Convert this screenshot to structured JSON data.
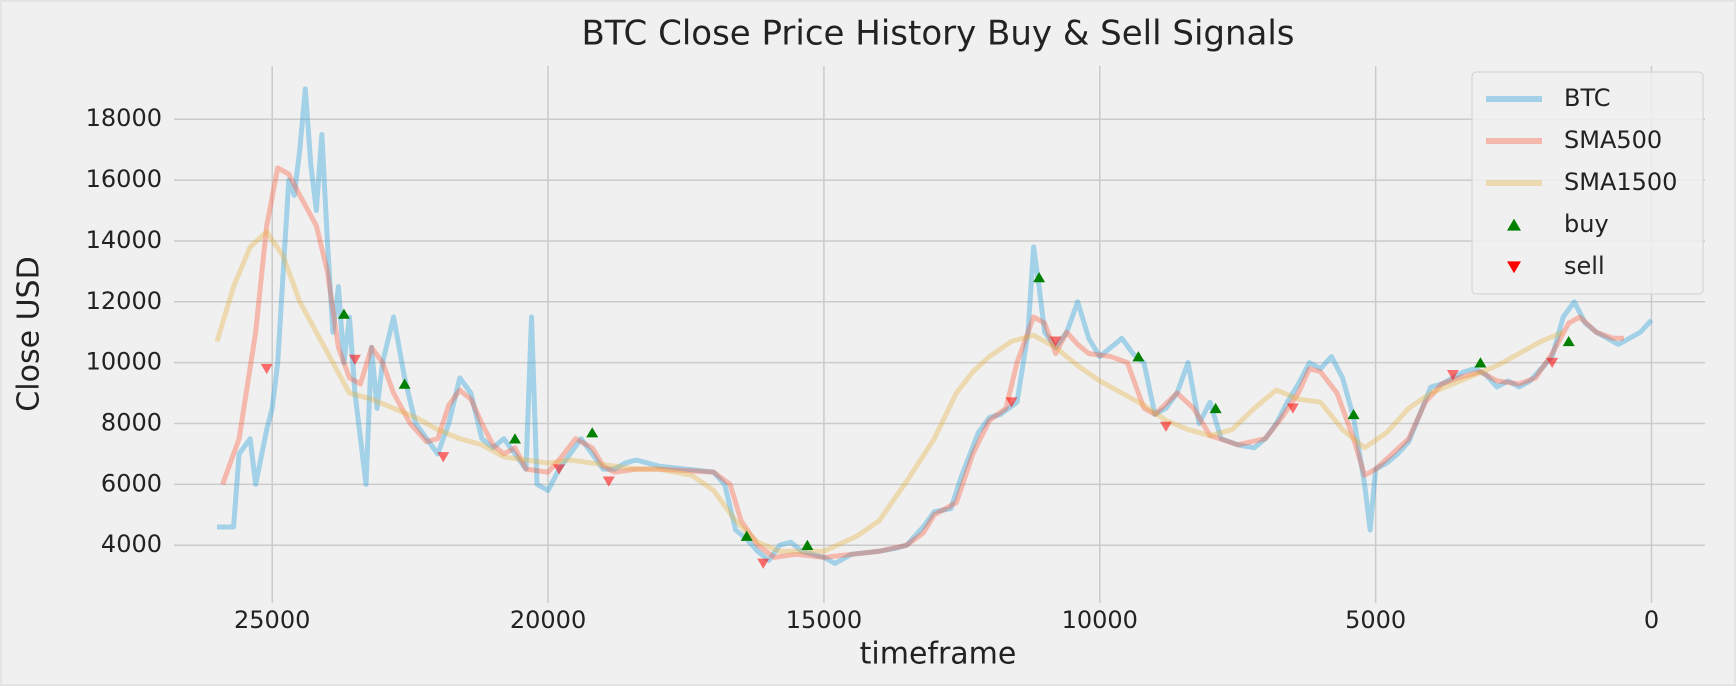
{
  "chart_data": {
    "type": "line",
    "title": "BTC Close Price History Buy & Sell Signals",
    "xlabel": "timeframe",
    "ylabel": "Close USD",
    "xlim": [
      26780,
      -970
    ],
    "xticks": [
      25000,
      20000,
      15000,
      10000,
      5000,
      0
    ],
    "ylim": [
      2100,
      19750
    ],
    "yticks": [
      4000,
      6000,
      8000,
      10000,
      12000,
      14000,
      16000,
      18000
    ],
    "grid": true,
    "legend": "upper right",
    "series": [
      {
        "name": "BTC",
        "color": "#30a2da",
        "opacity": 0.4,
        "x": [
          26000,
          25700,
          25600,
          25400,
          25300,
          25100,
          25000,
          24900,
          24800,
          24700,
          24600,
          24500,
          24400,
          24300,
          24200,
          24100,
          24000,
          23900,
          23800,
          23700,
          23600,
          23500,
          23300,
          23200,
          23100,
          23000,
          22800,
          22600,
          22400,
          22200,
          22000,
          21800,
          21600,
          21400,
          21200,
          21000,
          20800,
          20600,
          20400,
          20300,
          20200,
          20000,
          19800,
          19600,
          19400,
          19200,
          19000,
          18800,
          18600,
          18400,
          18000,
          17500,
          17000,
          16800,
          16600,
          16400,
          16200,
          16000,
          15800,
          15600,
          15400,
          15000,
          14800,
          14500,
          14000,
          13700,
          13500,
          13200,
          13000,
          12700,
          12500,
          12200,
          12000,
          11800,
          11500,
          11300,
          11200,
          11100,
          11000,
          10800,
          10600,
          10400,
          10200,
          10000,
          9800,
          9600,
          9400,
          9200,
          9000,
          8800,
          8600,
          8400,
          8200,
          8000,
          7800,
          7500,
          7200,
          7000,
          6800,
          6600,
          6400,
          6200,
          6000,
          5800,
          5600,
          5400,
          5200,
          5100,
          5000,
          4800,
          4600,
          4400,
          4200,
          4000,
          3800,
          3600,
          3400,
          3200,
          3000,
          2800,
          2600,
          2400,
          2200,
          2000,
          1800,
          1600,
          1400,
          1200,
          1000,
          800,
          600,
          400,
          200,
          0
        ],
        "values": [
          4600,
          4600,
          7000,
          7500,
          6000,
          7800,
          8500,
          10000,
          13000,
          16000,
          15500,
          17000,
          19000,
          16500,
          15000,
          17500,
          14000,
          11000,
          12500,
          10000,
          11500,
          9000,
          6000,
          10500,
          8500,
          10000,
          11500,
          9500,
          8000,
          7500,
          7000,
          8000,
          9500,
          9000,
          7500,
          7200,
          7500,
          7000,
          6500,
          11500,
          6000,
          5800,
          6500,
          7000,
          7500,
          7000,
          6500,
          6500,
          6700,
          6800,
          6600,
          6500,
          6400,
          6000,
          4500,
          4200,
          3800,
          3500,
          4000,
          4100,
          3800,
          3600,
          3400,
          3700,
          3800,
          3900,
          4000,
          4600,
          5100,
          5200,
          6300,
          7700,
          8200,
          8300,
          8700,
          11000,
          13800,
          12500,
          11000,
          10500,
          11000,
          12000,
          10800,
          10200,
          10500,
          10800,
          10300,
          10000,
          8300,
          8500,
          9000,
          10000,
          8000,
          8700,
          7500,
          7300,
          7200,
          7500,
          8000,
          8700,
          9300,
          10000,
          9800,
          10200,
          9500,
          8200,
          6000,
          4500,
          6500,
          6700,
          7000,
          7400,
          8300,
          9200,
          9300,
          9500,
          9700,
          9800,
          9600,
          9200,
          9400,
          9200,
          9400,
          9800,
          10200,
          11500,
          12000,
          11300,
          11000,
          10800,
          10600,
          10800,
          11000,
          11400
        ]
      },
      {
        "name": "SMA500",
        "color": "#fc4f30",
        "opacity": 0.35,
        "x": [
          25900,
          25600,
          25300,
          25100,
          24900,
          24700,
          24500,
          24200,
          24000,
          23800,
          23600,
          23400,
          23200,
          23000,
          22800,
          22500,
          22200,
          22000,
          21800,
          21600,
          21400,
          21200,
          21000,
          20800,
          20600,
          20400,
          20000,
          19800,
          19500,
          19200,
          19000,
          18800,
          18400,
          18000,
          17000,
          16700,
          16500,
          16200,
          15900,
          15500,
          15000,
          14500,
          14000,
          13500,
          13200,
          13000,
          12600,
          12300,
          12000,
          11700,
          11500,
          11200,
          11000,
          10800,
          10600,
          10400,
          10200,
          9800,
          9500,
          9200,
          9000,
          8600,
          8300,
          8000,
          7500,
          7000,
          6700,
          6400,
          6200,
          6000,
          5700,
          5400,
          5200,
          5000,
          4700,
          4400,
          4100,
          3800,
          3500,
          3100,
          2800,
          2400,
          2100,
          1800,
          1500,
          1300,
          1000,
          700,
          500
        ],
        "values": [
          6000,
          7500,
          11000,
          14500,
          16400,
          16200,
          15500,
          14500,
          13000,
          10500,
          9500,
          9300,
          10500,
          10000,
          9000,
          8000,
          7400,
          7500,
          8600,
          9100,
          8800,
          8000,
          7300,
          7000,
          7200,
          6500,
          6400,
          6800,
          7500,
          7200,
          6600,
          6400,
          6500,
          6500,
          6400,
          6000,
          4800,
          4000,
          3600,
          3700,
          3600,
          3700,
          3800,
          4000,
          4400,
          5000,
          5400,
          7000,
          8100,
          8500,
          10000,
          11500,
          11300,
          10300,
          11000,
          10600,
          10300,
          10200,
          10000,
          8500,
          8300,
          9000,
          8500,
          7600,
          7300,
          7500,
          8200,
          9000,
          9800,
          9700,
          9000,
          7500,
          6300,
          6500,
          7000,
          7500,
          8700,
          9300,
          9500,
          9700,
          9400,
          9300,
          9500,
          10300,
          11300,
          11500,
          11000,
          10800,
          10800
        ]
      },
      {
        "name": "SMA1500",
        "color": "#e5ae38",
        "opacity": 0.35,
        "x": [
          26000,
          25700,
          25400,
          25100,
          24800,
          24500,
          24200,
          23900,
          23600,
          23200,
          22800,
          22400,
          22000,
          21600,
          21200,
          20800,
          20400,
          20000,
          19600,
          19200,
          18800,
          18400,
          18000,
          17400,
          17000,
          16600,
          16200,
          15800,
          15400,
          15000,
          14400,
          14000,
          13500,
          13000,
          12600,
          12300,
          12000,
          11600,
          11200,
          10800,
          10400,
          10000,
          9600,
          9200,
          8800,
          8400,
          8000,
          7600,
          7200,
          6800,
          6400,
          6000,
          5600,
          5200,
          4800,
          4400,
          4000,
          3600,
          3200,
          2800,
          2400,
          2000,
          1600
        ],
        "values": [
          10700,
          12500,
          13800,
          14300,
          13500,
          12000,
          11000,
          10000,
          9000,
          8800,
          8500,
          8200,
          7800,
          7500,
          7300,
          6900,
          6800,
          6700,
          6800,
          6700,
          6600,
          6500,
          6500,
          6300,
          5800,
          4800,
          4100,
          3800,
          3800,
          3800,
          4300,
          4800,
          6100,
          7500,
          9000,
          9700,
          10200,
          10700,
          10900,
          10500,
          9900,
          9400,
          9000,
          8600,
          8100,
          7800,
          7600,
          7800,
          8500,
          9100,
          8800,
          8700,
          7800,
          7200,
          7700,
          8500,
          9000,
          9300,
          9600,
          9900,
          10300,
          10700,
          11000
        ]
      },
      {
        "name": "buy",
        "color": "#008000",
        "marker": "^",
        "x": [
          23700,
          22600,
          20600,
          19200,
          16400,
          15300,
          11100,
          9300,
          7900,
          5400,
          3100,
          1500
        ],
        "values": [
          11600,
          9300,
          7500,
          7700,
          4300,
          4000,
          12800,
          10200,
          8500,
          8300,
          10000,
          10700
        ]
      },
      {
        "name": "sell",
        "color": "#ff0000",
        "marker": "v",
        "x": [
          25100,
          23500,
          21900,
          19800,
          18900,
          16100,
          11600,
          10800,
          8800,
          6500,
          3600,
          1800
        ],
        "values": [
          9800,
          10100,
          6900,
          6500,
          6100,
          3400,
          8700,
          10700,
          7900,
          8500,
          9600,
          10000
        ]
      }
    ]
  }
}
